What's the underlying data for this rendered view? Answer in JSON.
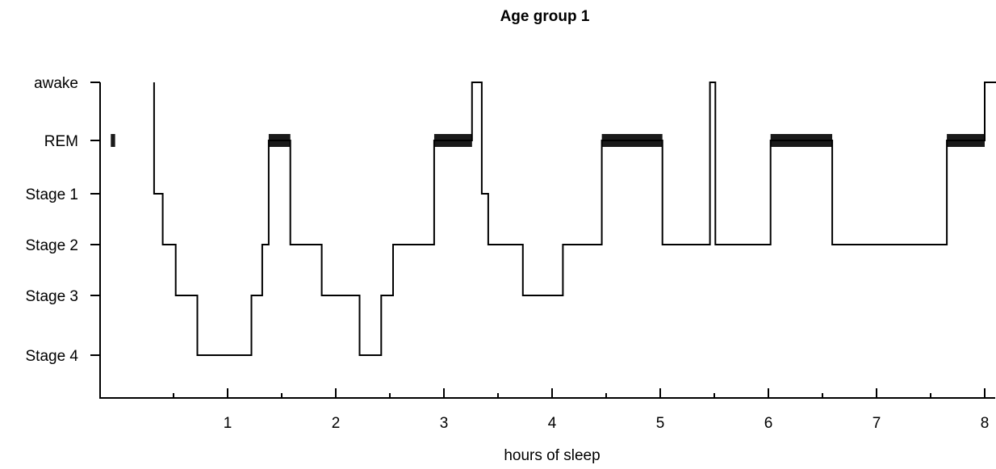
{
  "chart_data": {
    "type": "line",
    "title": "Age group 1",
    "xlabel": "hours of sleep",
    "ylabel": "",
    "xlim": [
      -0.08,
      8
    ],
    "x_ticks": [
      1,
      2,
      3,
      4,
      5,
      6,
      7,
      8
    ],
    "x_minor_ticks": [
      0.5,
      1.5,
      2.5,
      3.5,
      4.5,
      5.5,
      6.5,
      7.5
    ],
    "y_categories": [
      "awake",
      "REM",
      "Stage 1",
      "Stage 2",
      "Stage 3",
      "Stage 4"
    ],
    "grid": false,
    "legend": "none",
    "series": [
      {
        "step_points": [
          [
            0.32,
            "awake"
          ],
          [
            0.32,
            "Stage 1"
          ],
          [
            0.4,
            "Stage 1"
          ],
          [
            0.4,
            "Stage 2"
          ],
          [
            0.52,
            "Stage 2"
          ],
          [
            0.52,
            "Stage 3"
          ],
          [
            0.72,
            "Stage 3"
          ],
          [
            0.72,
            "Stage 4"
          ],
          [
            1.22,
            "Stage 4"
          ],
          [
            1.22,
            "Stage 3"
          ],
          [
            1.32,
            "Stage 3"
          ],
          [
            1.32,
            "Stage 2"
          ],
          [
            1.38,
            "Stage 2"
          ],
          [
            1.38,
            "REM"
          ],
          [
            1.58,
            "REM"
          ],
          [
            1.58,
            "Stage 2"
          ],
          [
            1.87,
            "Stage 2"
          ],
          [
            1.87,
            "Stage 3"
          ],
          [
            2.22,
            "Stage 3"
          ],
          [
            2.22,
            "Stage 4"
          ],
          [
            2.42,
            "Stage 4"
          ],
          [
            2.42,
            "Stage 3"
          ],
          [
            2.53,
            "Stage 3"
          ],
          [
            2.53,
            "Stage 2"
          ],
          [
            2.91,
            "Stage 2"
          ],
          [
            2.91,
            "REM"
          ],
          [
            3.26,
            "REM"
          ],
          [
            3.26,
            "awake"
          ],
          [
            3.35,
            "awake"
          ],
          [
            3.35,
            "Stage 1"
          ],
          [
            3.41,
            "Stage 1"
          ],
          [
            3.41,
            "Stage 2"
          ],
          [
            3.73,
            "Stage 2"
          ],
          [
            3.73,
            "Stage 3"
          ],
          [
            4.1,
            "Stage 3"
          ],
          [
            4.1,
            "Stage 2"
          ],
          [
            4.46,
            "Stage 2"
          ],
          [
            4.46,
            "REM"
          ],
          [
            5.02,
            "REM"
          ],
          [
            5.02,
            "Stage 2"
          ],
          [
            5.46,
            "Stage 2"
          ],
          [
            5.46,
            "awake"
          ],
          [
            5.51,
            "awake"
          ],
          [
            5.51,
            "Stage 2"
          ],
          [
            6.02,
            "Stage 2"
          ],
          [
            6.02,
            "REM"
          ],
          [
            6.59,
            "REM"
          ],
          [
            6.59,
            "Stage 2"
          ],
          [
            7.65,
            "Stage 2"
          ],
          [
            7.65,
            "REM"
          ],
          [
            8.0,
            "REM"
          ],
          [
            8.0,
            "awake"
          ],
          [
            8.25,
            "awake"
          ]
        ]
      }
    ],
    "rem_periods": [
      [
        -0.08,
        -0.04
      ],
      [
        1.38,
        1.58
      ],
      [
        2.91,
        3.26
      ],
      [
        4.46,
        5.02
      ],
      [
        6.02,
        6.59
      ],
      [
        7.65,
        8.0
      ]
    ]
  }
}
